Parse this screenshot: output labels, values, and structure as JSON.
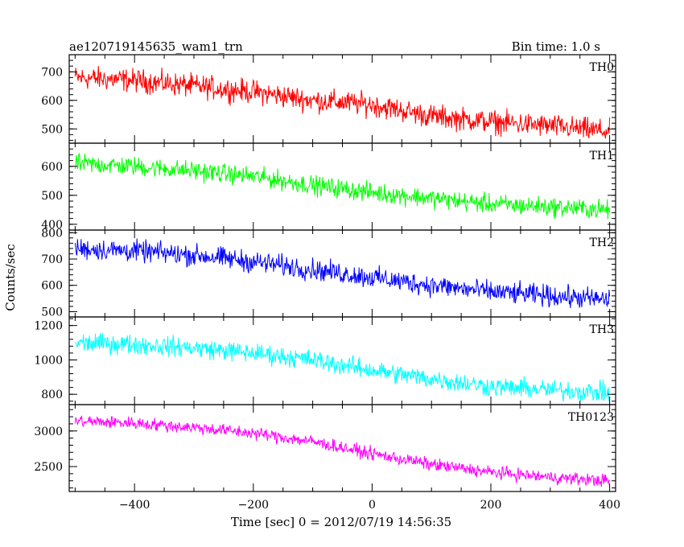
{
  "header": {
    "title": "ae120719145635_wam1_trn",
    "bin_time": "Bin time: 1.0 s"
  },
  "chart_data": {
    "type": "line",
    "title": "ae120719145635_wam1_trn",
    "xlabel": "Time [sec] 0 = 2012/07/19 14:56:35",
    "ylabel": "Counts/sec",
    "xlim": [
      -510,
      410
    ],
    "x_ticks": [
      -400,
      -200,
      0,
      200,
      400
    ],
    "grid": false,
    "panels": [
      {
        "name": "TH0",
        "color": "#ff0000",
        "ylim": [
          450,
          760
        ],
        "y_ticks": [
          500,
          600,
          700
        ],
        "x": [
          -500,
          -400,
          -300,
          -200,
          -100,
          0,
          100,
          200,
          300,
          400
        ],
        "values": [
          680,
          670,
          650,
          630,
          600,
          585,
          545,
          525,
          510,
          490
        ],
        "noise": 32
      },
      {
        "name": "TH1",
        "color": "#00ff00",
        "ylim": [
          380,
          680
        ],
        "y_ticks": [
          400,
          500,
          600
        ],
        "x": [
          -500,
          -400,
          -300,
          -200,
          -100,
          0,
          100,
          200,
          300,
          400
        ],
        "values": [
          610,
          600,
          585,
          565,
          535,
          510,
          490,
          470,
          460,
          450
        ],
        "noise": 26
      },
      {
        "name": "TH2",
        "color": "#0000ff",
        "ylim": [
          480,
          810
        ],
        "y_ticks": [
          500,
          600,
          700,
          800
        ],
        "x": [
          -500,
          -400,
          -300,
          -200,
          -100,
          0,
          100,
          200,
          300,
          400
        ],
        "values": [
          740,
          730,
          715,
          690,
          660,
          630,
          600,
          575,
          560,
          545
        ],
        "noise": 32
      },
      {
        "name": "TH3",
        "color": "#00ffff",
        "ylim": [
          740,
          1250
        ],
        "y_ticks": [
          800,
          1000,
          1200
        ],
        "x": [
          -500,
          -400,
          -300,
          -200,
          -100,
          0,
          100,
          200,
          300,
          400
        ],
        "values": [
          1100,
          1090,
          1070,
          1040,
          1000,
          940,
          890,
          845,
          825,
          810
        ],
        "noise": 45
      },
      {
        "name": "TH0123",
        "color": "#ff00ff",
        "ylim": [
          2150,
          3370
        ],
        "y_ticks": [
          2500,
          3000
        ],
        "x": [
          -500,
          -400,
          -300,
          -200,
          -100,
          0,
          100,
          200,
          300,
          400
        ],
        "values": [
          3140,
          3110,
          3050,
          2970,
          2850,
          2680,
          2530,
          2420,
          2350,
          2300
        ],
        "noise": 70
      }
    ]
  }
}
